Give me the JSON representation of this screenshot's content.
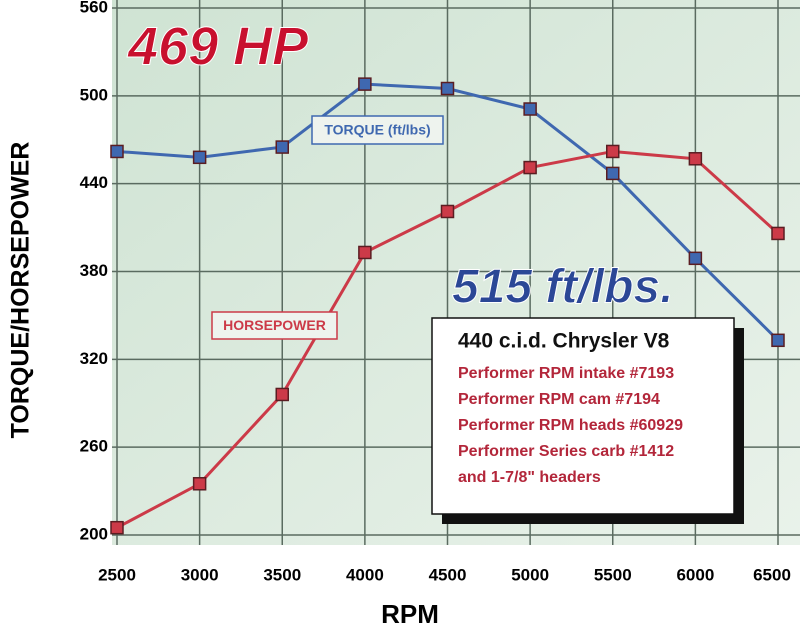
{
  "chart_data": {
    "type": "line",
    "annotations": [
      "469 HP",
      "515 ft/lbs."
    ],
    "info_box": {
      "title": "440 c.i.d. Chrysler V8",
      "lines": [
        "Performer RPM intake #7193",
        "Performer RPM cam #7194",
        "Performer RPM heads #60929",
        "Performer Series carb #1412",
        "and 1-7/8\" headers"
      ]
    },
    "x_label": "RPM",
    "y_label": "TORQUE/HORSEPOWER",
    "x": [
      2500,
      3000,
      3500,
      4000,
      4500,
      5000,
      5500,
      6000,
      6500
    ],
    "xlim": [
      2500,
      6500
    ],
    "xticks": [
      2500,
      3000,
      3500,
      4000,
      4500,
      5000,
      5500,
      6000,
      6500
    ],
    "ylim": [
      200,
      560
    ],
    "yticks": [
      200,
      260,
      320,
      380,
      440,
      500,
      560
    ],
    "grid": true,
    "series": [
      {
        "name": "TORQUE (ft/lbs)",
        "color": "#3f68b0",
        "values": [
          462,
          458,
          465,
          508,
          505,
          491,
          447,
          389,
          333
        ]
      },
      {
        "name": "HORSEPOWER",
        "color": "#cc3a48",
        "values": [
          205,
          235,
          296,
          393,
          421,
          451,
          462,
          457,
          406
        ]
      }
    ]
  }
}
